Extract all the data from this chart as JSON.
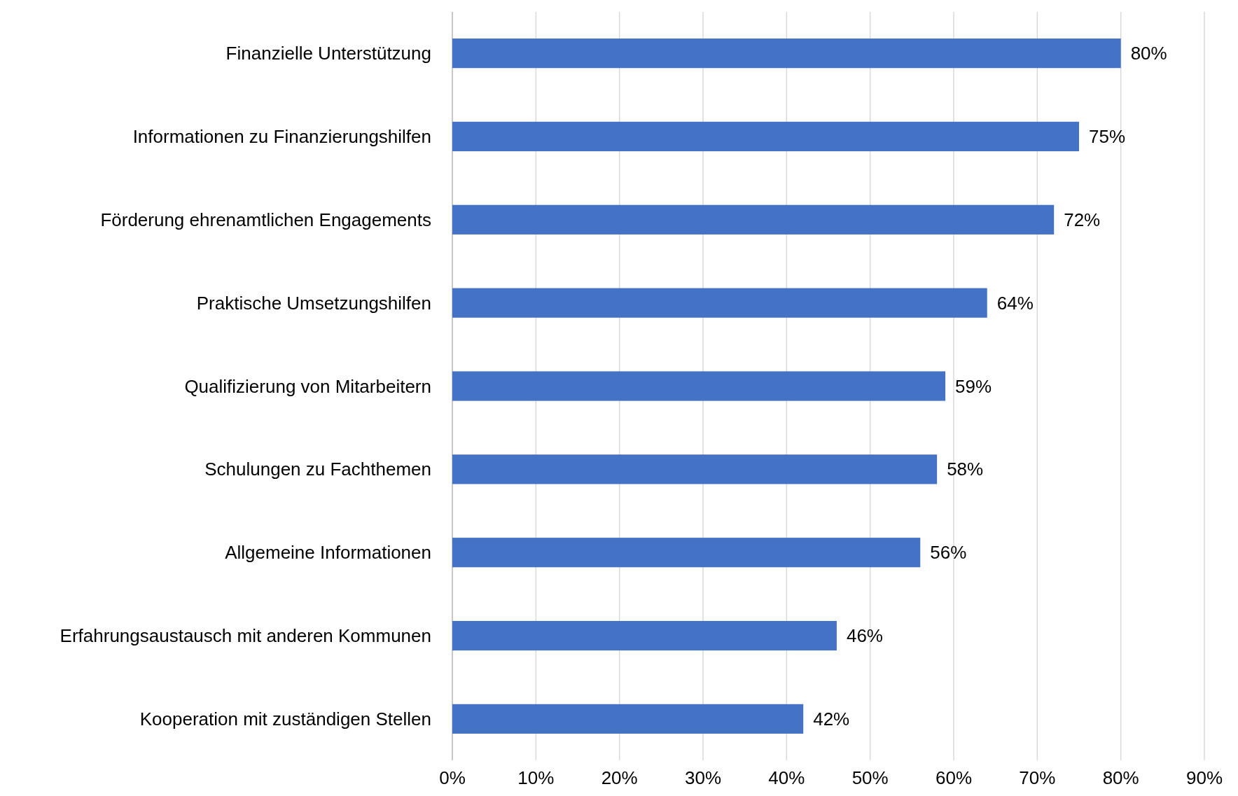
{
  "chart_data": {
    "type": "bar",
    "orientation": "horizontal",
    "categories": [
      "Finanzielle Unterstützung",
      "Informationen zu Finanzierungshilfen",
      "Förderung ehrenamtlichen Engagements",
      "Praktische Umsetzungshilfen",
      "Qualifizierung von Mitarbeitern",
      "Schulungen zu Fachthemen",
      "Allgemeine Informationen",
      "Erfahrungsaustausch mit anderen Kommunen",
      "Kooperation mit zuständigen Stellen"
    ],
    "values": [
      80,
      75,
      72,
      64,
      59,
      58,
      56,
      46,
      42
    ],
    "color": "#4472c4",
    "xlim": [
      0,
      90
    ],
    "xticks": [
      {
        "value": 0,
        "label": "0%"
      },
      {
        "value": 10,
        "label": "10%"
      },
      {
        "value": 20,
        "label": "20%"
      },
      {
        "value": 30,
        "label": "30%"
      },
      {
        "value": 40,
        "label": "40%"
      },
      {
        "value": 50,
        "label": "50%"
      },
      {
        "value": 60,
        "label": "60%"
      },
      {
        "value": 70,
        "label": "70%"
      },
      {
        "value": 80,
        "label": "80%"
      },
      {
        "value": 90,
        "label": "90%"
      }
    ],
    "value_labels": [
      "80%",
      "75%",
      "72%",
      "64%",
      "59%",
      "58%",
      "56%",
      "46%",
      "42%"
    ],
    "grid": "x"
  }
}
